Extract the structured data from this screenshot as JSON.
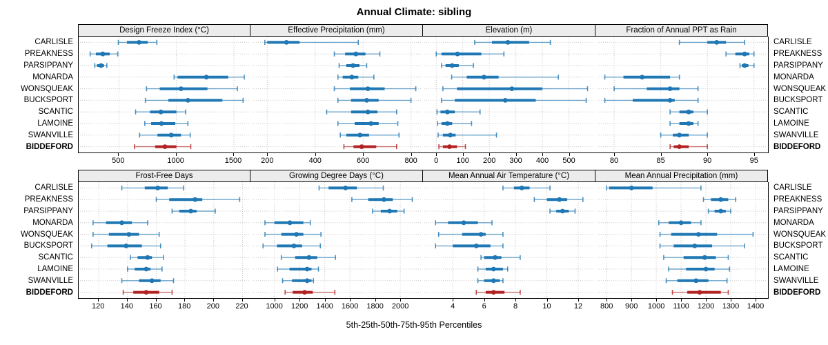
{
  "chart_data": {
    "type": "scatter",
    "subtype": "percentile-interval-dot-plot",
    "title": "Annual Climate: sibling",
    "caption": "5th-25th-50th-75th-95th Percentiles",
    "percentile_labels": [
      "5th",
      "25th",
      "50th",
      "75th",
      "95th"
    ],
    "legend_position": "none",
    "grid": "dotted",
    "layout": {
      "rows": 2,
      "cols": 4
    },
    "categories": [
      "CARLISLE",
      "PREAKNESS",
      "PARSIPPANY",
      "MONARDA",
      "WONSQUEAK",
      "BUCKSPORT",
      "SCANTIC",
      "LAMOINE",
      "SWANVILLE",
      "BIDDEFORD"
    ],
    "highlight_category": "BIDDEFORD",
    "colors": {
      "series": "#1f77b4",
      "highlight": "#b22222",
      "grid_line": "#c9c9c9",
      "strip_bg": "#ececec",
      "panel_border": "#000000"
    },
    "panels": [
      {
        "title": "Design Freeze Index (°C)",
        "xlim": [
          150,
          1650
        ],
        "ticks": [
          500,
          1000,
          1500
        ],
        "values": [
          [
            495,
            570,
            675,
            750,
            830
          ],
          [
            250,
            300,
            360,
            420,
            490
          ],
          [
            290,
            310,
            345,
            370,
            395
          ],
          [
            980,
            1010,
            1260,
            1450,
            1590
          ],
          [
            740,
            855,
            1040,
            1270,
            1530
          ],
          [
            730,
            930,
            1100,
            1400,
            1580
          ],
          [
            645,
            770,
            865,
            1000,
            1080
          ],
          [
            725,
            780,
            870,
            990,
            1100
          ],
          [
            680,
            835,
            955,
            1040,
            1120
          ],
          [
            635,
            815,
            900,
            1000,
            1125
          ]
        ]
      },
      {
        "title": "Effective Precipitation (mm)",
        "xlim": [
          130,
          850
        ],
        "ticks": [
          200,
          400,
          600,
          800
        ],
        "values": [
          [
            190,
            200,
            280,
            335,
            580
          ],
          [
            480,
            525,
            570,
            610,
            670
          ],
          [
            500,
            530,
            558,
            585,
            615
          ],
          [
            495,
            515,
            553,
            580,
            645
          ],
          [
            480,
            545,
            620,
            690,
            820
          ],
          [
            495,
            550,
            615,
            665,
            800
          ],
          [
            448,
            550,
            620,
            660,
            740
          ],
          [
            495,
            565,
            633,
            665,
            745
          ],
          [
            505,
            530,
            587,
            625,
            750
          ],
          [
            520,
            560,
            594,
            655,
            740
          ]
        ]
      },
      {
        "title": "Elevation (m)",
        "xlim": [
          -50,
          600
        ],
        "ticks": [
          0,
          100,
          200,
          300,
          400,
          500
        ],
        "values": [
          [
            145,
            210,
            270,
            350,
            430
          ],
          [
            0,
            20,
            80,
            170,
            255
          ],
          [
            20,
            35,
            60,
            85,
            140
          ],
          [
            58,
            115,
            180,
            235,
            460
          ],
          [
            25,
            78,
            285,
            400,
            570
          ],
          [
            20,
            70,
            260,
            375,
            565
          ],
          [
            3,
            16,
            42,
            70,
            165
          ],
          [
            5,
            20,
            42,
            60,
            133
          ],
          [
            7,
            25,
            53,
            73,
            227
          ],
          [
            10,
            25,
            50,
            78,
            110
          ]
        ]
      },
      {
        "title": "Fraction of Annual PPT as Rain",
        "xlim": [
          78,
          96.5
        ],
        "ticks": [
          80,
          85,
          90,
          95
        ],
        "values": [
          [
            87,
            90,
            91,
            92,
            94
          ],
          [
            92,
            93,
            94,
            94.5,
            95
          ],
          [
            93.5,
            93.7,
            94,
            94.4,
            95
          ],
          [
            79,
            81,
            83,
            86,
            87
          ],
          [
            80,
            83.5,
            86,
            87,
            89
          ],
          [
            79,
            82,
            86,
            86.5,
            89
          ],
          [
            86,
            87,
            88,
            88.5,
            90
          ],
          [
            86,
            87,
            88,
            88.5,
            89
          ],
          [
            85,
            86.3,
            87,
            88,
            90
          ],
          [
            86,
            86.4,
            87,
            88,
            90
          ]
        ]
      },
      {
        "title": "Frost-Free Days",
        "xlim": [
          106,
          226
        ],
        "ticks": [
          120,
          140,
          160,
          180,
          200,
          220
        ],
        "values": [
          [
            136,
            152,
            161,
            168,
            179
          ],
          [
            160,
            169,
            187,
            192,
            218
          ],
          [
            171,
            176,
            184,
            188,
            201
          ],
          [
            116,
            125,
            136,
            143,
            154
          ],
          [
            116,
            127,
            141,
            148,
            162
          ],
          [
            115,
            126,
            139,
            150,
            163
          ],
          [
            142,
            147,
            154,
            157,
            165
          ],
          [
            140,
            145,
            153,
            156,
            164
          ],
          [
            136,
            148,
            157,
            163,
            172
          ],
          [
            137,
            144,
            153,
            162,
            171
          ]
        ]
      },
      {
        "title": "Growing Degree Days (°C)",
        "xlim": [
          810,
          2180
        ],
        "ticks": [
          1000,
          1200,
          1400,
          1600,
          1800,
          2000
        ],
        "values": [
          [
            1355,
            1430,
            1565,
            1655,
            1865
          ],
          [
            1615,
            1745,
            1870,
            1940,
            2095
          ],
          [
            1780,
            1845,
            1915,
            1975,
            2030
          ],
          [
            925,
            1000,
            1123,
            1230,
            1285
          ],
          [
            925,
            1055,
            1175,
            1230,
            1370
          ],
          [
            910,
            1020,
            1155,
            1220,
            1365
          ],
          [
            1055,
            1165,
            1275,
            1340,
            1485
          ],
          [
            1025,
            1120,
            1260,
            1295,
            1350
          ],
          [
            1065,
            1140,
            1260,
            1295,
            1310
          ],
          [
            1085,
            1145,
            1240,
            1305,
            1480
          ]
        ]
      },
      {
        "title": "Mean Annual Air Temperature (°C)",
        "xlim": [
          2.1,
          13.1
        ],
        "ticks": [
          4,
          6,
          8,
          10,
          12
        ],
        "values": [
          [
            7.2,
            7.9,
            8.4,
            8.9,
            10.2
          ],
          [
            9.2,
            10.0,
            10.8,
            11.3,
            12.3
          ],
          [
            10.2,
            10.6,
            11.0,
            11.4,
            11.8
          ],
          [
            2.9,
            3.7,
            4.7,
            5.6,
            6.5
          ],
          [
            3.1,
            4.6,
            5.8,
            6.1,
            7.2
          ],
          [
            2.9,
            4.0,
            5.5,
            6.4,
            7.2
          ],
          [
            5.8,
            6.0,
            6.7,
            7.1,
            8.3
          ],
          [
            5.6,
            6.1,
            6.6,
            7.2,
            7.5
          ],
          [
            5.6,
            6.0,
            6.6,
            7.0,
            7.2
          ],
          [
            5.5,
            6.1,
            6.6,
            7.3,
            8.3
          ]
        ]
      },
      {
        "title": "Mean Annual Precipitation (mm)",
        "xlim": [
          755,
          1450
        ],
        "ticks": [
          800,
          900,
          1000,
          1100,
          1200,
          1300,
          1400
        ],
        "values": [
          [
            800,
            810,
            900,
            985,
            1180
          ],
          [
            1190,
            1220,
            1260,
            1290,
            1320
          ],
          [
            1210,
            1235,
            1260,
            1280,
            1300
          ],
          [
            1010,
            1050,
            1100,
            1140,
            1180
          ],
          [
            1015,
            1060,
            1170,
            1245,
            1390
          ],
          [
            1015,
            1070,
            1155,
            1225,
            1355
          ],
          [
            1030,
            1110,
            1195,
            1240,
            1290
          ],
          [
            1050,
            1120,
            1200,
            1235,
            1295
          ],
          [
            1040,
            1085,
            1160,
            1210,
            1285
          ],
          [
            1065,
            1125,
            1175,
            1260,
            1290
          ]
        ]
      }
    ]
  }
}
